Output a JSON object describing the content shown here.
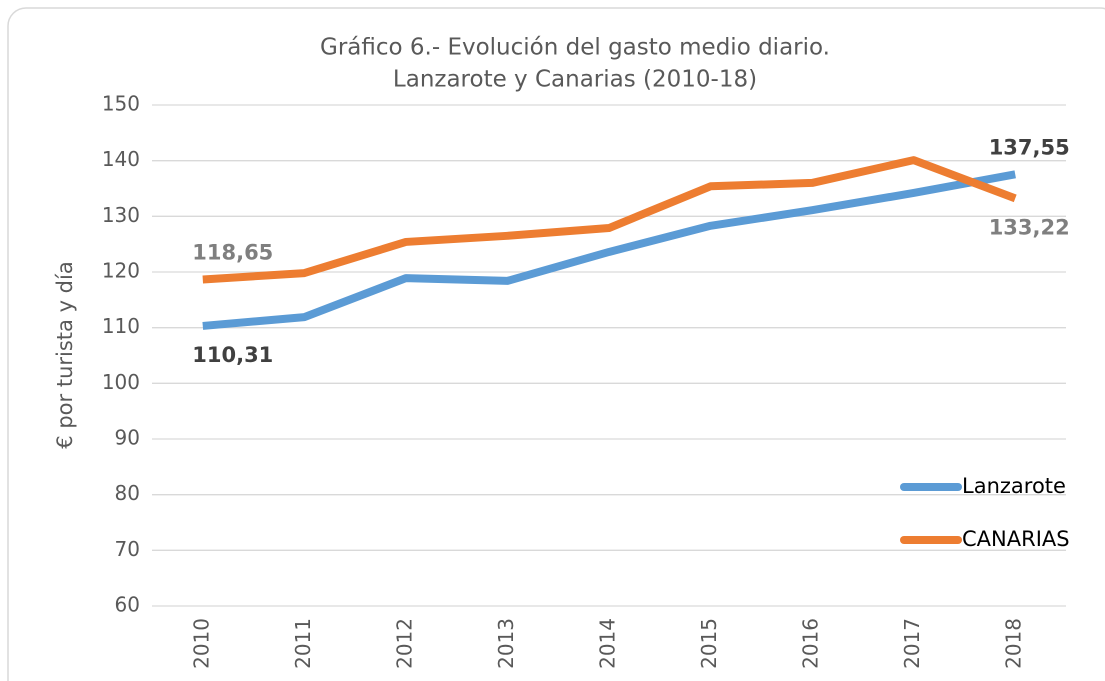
{
  "chart_data": {
    "type": "line",
    "title": [
      "Gráfico 6.- Evolución del gasto medio diario.",
      "Lanzarote y Canarias (2010-18)"
    ],
    "y_label": "€ por turista y día",
    "categories": [
      "2010",
      "2011",
      "2012",
      "2013",
      "2014",
      "2015",
      "2016",
      "2017",
      "2018"
    ],
    "series": [
      {
        "name": "Lanzarote",
        "color": "#5b9bd5",
        "values": [
          110.31,
          111.9,
          118.9,
          118.4,
          123.6,
          128.3,
          131.1,
          134.2,
          137.55
        ],
        "value_labels": [
          "110,31",
          null,
          null,
          null,
          null,
          null,
          null,
          null,
          "137,55"
        ],
        "label_color": "#404040"
      },
      {
        "name": "CANARIAS",
        "color": "#ed7d31",
        "values": [
          118.65,
          119.8,
          125.4,
          126.5,
          127.9,
          135.4,
          136.0,
          140.1,
          133.22
        ],
        "value_labels": [
          "118,65",
          null,
          null,
          null,
          null,
          null,
          null,
          null,
          "133,22"
        ],
        "label_color": "#7f7f7f"
      }
    ],
    "ylim": [
      60,
      150
    ],
    "yticks": [
      60,
      70,
      80,
      90,
      100,
      110,
      120,
      130,
      140,
      150
    ],
    "grid": true,
    "legend": "right"
  }
}
